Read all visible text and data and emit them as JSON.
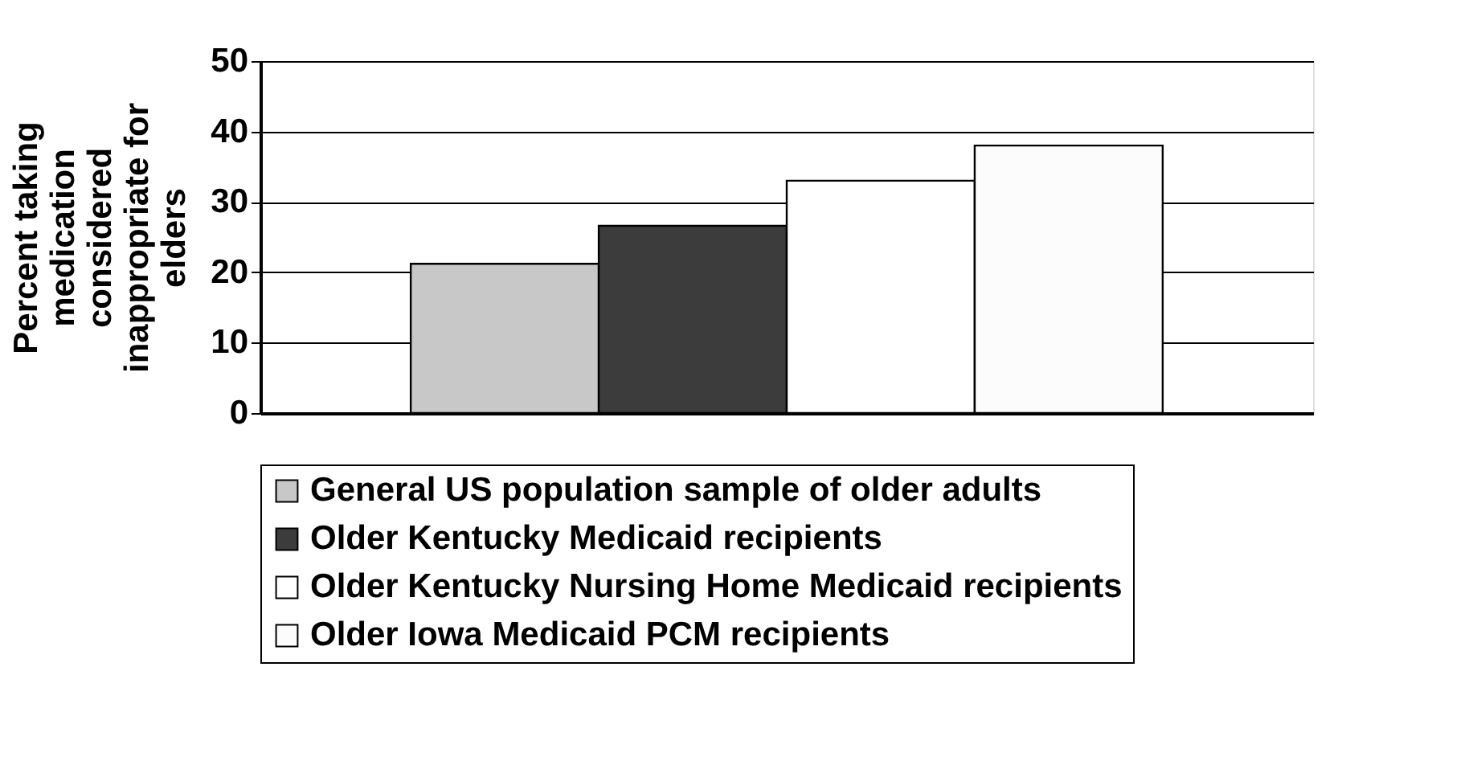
{
  "chart_data": {
    "type": "bar",
    "ylabel": "Percent taking medication considered inappropriate for elders",
    "categories": [
      null
    ],
    "series": [
      {
        "name": "General US population sample of older adults",
        "color": "#c8c8c8",
        "values": [
          21.2
        ]
      },
      {
        "name": "Older Kentucky Medicaid recipients",
        "color": "#3c3c3c",
        "values": [
          26.6
        ]
      },
      {
        "name": "Older Kentucky Nursing Home Medicaid recipients",
        "color": "#ffffff",
        "values": [
          33
        ]
      },
      {
        "name": "Older Iowa Medicaid PCM recipients",
        "color": "#fcfcfc",
        "values": [
          38
        ]
      }
    ],
    "ylim": [
      0,
      50
    ],
    "yticks": [
      0,
      10,
      20,
      30,
      40,
      50
    ],
    "grid": "y",
    "legend": "bottom"
  }
}
